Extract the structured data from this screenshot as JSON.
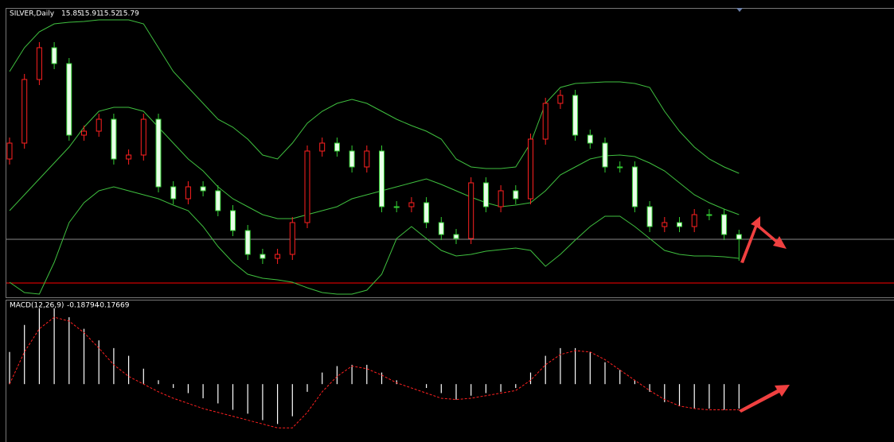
{
  "chart_data": {
    "type": "candlestick",
    "symbol": "SILVER,Daily",
    "ohlc": [
      15.85,
      15.91,
      15.52,
      15.79
    ],
    "ylim": [
      15.08,
      18.7
    ],
    "level": 15.24,
    "level_color": "#ff0000",
    "bid_color": "#8a8a8a",
    "up_color": "#ff2020",
    "down_color": "#e8ffe8",
    "wick_color": "#33cc33",
    "band_color": "#3fbf3f",
    "candles": [
      [
        16.8,
        17.07,
        16.73,
        17.0
      ],
      [
        17.0,
        17.87,
        16.93,
        17.8
      ],
      [
        17.8,
        18.27,
        17.73,
        18.2
      ],
      [
        18.2,
        18.27,
        17.93,
        18.0
      ],
      [
        18.0,
        18.07,
        17.03,
        17.1
      ],
      [
        17.1,
        17.22,
        17.03,
        17.15
      ],
      [
        17.15,
        17.37,
        17.08,
        17.3
      ],
      [
        17.3,
        17.37,
        16.73,
        16.8
      ],
      [
        16.8,
        16.92,
        16.73,
        16.85
      ],
      [
        16.85,
        17.37,
        16.78,
        17.3
      ],
      [
        17.3,
        17.37,
        16.38,
        16.45
      ],
      [
        16.45,
        16.52,
        16.23,
        16.3
      ],
      [
        16.3,
        16.52,
        16.23,
        16.45
      ],
      [
        16.45,
        16.52,
        16.33,
        16.4
      ],
      [
        16.4,
        16.47,
        16.08,
        16.15
      ],
      [
        16.15,
        16.22,
        15.83,
        15.9
      ],
      [
        15.9,
        15.97,
        15.53,
        15.6
      ],
      [
        15.6,
        15.67,
        15.48,
        15.55
      ],
      [
        15.55,
        15.67,
        15.48,
        15.6
      ],
      [
        15.6,
        16.07,
        15.53,
        16.0
      ],
      [
        16.0,
        16.97,
        15.93,
        16.9
      ],
      [
        16.9,
        17.07,
        16.83,
        17.0
      ],
      [
        17.0,
        17.07,
        16.83,
        16.9
      ],
      [
        16.9,
        16.97,
        16.63,
        16.7
      ],
      [
        16.7,
        16.97,
        16.63,
        16.9
      ],
      [
        16.9,
        16.97,
        16.13,
        16.2
      ],
      [
        16.2,
        16.27,
        16.13,
        16.2
      ],
      [
        16.2,
        16.32,
        16.13,
        16.25
      ],
      [
        16.25,
        16.32,
        15.93,
        16.0
      ],
      [
        16.0,
        16.07,
        15.78,
        15.85
      ],
      [
        15.85,
        15.92,
        15.73,
        15.8
      ],
      [
        15.8,
        16.57,
        15.73,
        16.5
      ],
      [
        16.5,
        16.57,
        16.13,
        16.2
      ],
      [
        16.2,
        16.47,
        16.13,
        16.4
      ],
      [
        16.4,
        16.47,
        16.23,
        16.3
      ],
      [
        16.3,
        17.12,
        16.23,
        17.05
      ],
      [
        17.05,
        17.57,
        16.98,
        17.5
      ],
      [
        17.5,
        17.67,
        17.43,
        17.6
      ],
      [
        17.6,
        17.67,
        17.03,
        17.1
      ],
      [
        17.1,
        17.17,
        16.93,
        17.0
      ],
      [
        17.0,
        17.07,
        16.63,
        16.7
      ],
      [
        16.7,
        16.77,
        16.63,
        16.7
      ],
      [
        16.7,
        16.77,
        16.13,
        16.2
      ],
      [
        16.2,
        16.27,
        15.88,
        15.95
      ],
      [
        15.95,
        16.07,
        15.88,
        16.0
      ],
      [
        16.0,
        16.07,
        15.88,
        15.95
      ],
      [
        15.95,
        16.17,
        15.88,
        16.1
      ],
      [
        16.1,
        16.17,
        16.03,
        16.1
      ],
      [
        16.1,
        16.17,
        15.78,
        15.85
      ],
      [
        15.85,
        15.91,
        15.52,
        15.79
      ]
    ],
    "upper_band": [
      17.9,
      18.2,
      18.4,
      18.5,
      18.52,
      18.53,
      18.55,
      18.55,
      18.55,
      18.5,
      18.2,
      17.9,
      17.7,
      17.5,
      17.3,
      17.2,
      17.05,
      16.85,
      16.8,
      17.0,
      17.25,
      17.4,
      17.5,
      17.55,
      17.5,
      17.4,
      17.3,
      17.22,
      17.15,
      17.05,
      16.8,
      16.7,
      16.68,
      16.68,
      16.7,
      17.0,
      17.5,
      17.7,
      17.75,
      17.76,
      17.77,
      17.77,
      17.75,
      17.7,
      17.4,
      17.15,
      16.95,
      16.8,
      16.7,
      16.62
    ],
    "middle_band": [
      16.15,
      16.35,
      16.55,
      16.75,
      16.95,
      17.2,
      17.4,
      17.45,
      17.45,
      17.4,
      17.2,
      17.0,
      16.8,
      16.65,
      16.45,
      16.3,
      16.2,
      16.1,
      16.05,
      16.05,
      16.1,
      16.15,
      16.2,
      16.3,
      16.35,
      16.4,
      16.45,
      16.5,
      16.55,
      16.48,
      16.4,
      16.32,
      16.25,
      16.2,
      16.22,
      16.25,
      16.4,
      16.6,
      16.7,
      16.8,
      16.84,
      16.85,
      16.83,
      16.75,
      16.65,
      16.5,
      16.35,
      16.25,
      16.17,
      16.1
    ],
    "lower_band": [
      15.25,
      15.12,
      15.1,
      15.5,
      16.0,
      16.25,
      16.4,
      16.45,
      16.4,
      16.35,
      16.3,
      16.22,
      16.15,
      15.95,
      15.7,
      15.5,
      15.35,
      15.3,
      15.28,
      15.25,
      15.18,
      15.12,
      15.1,
      15.1,
      15.15,
      15.35,
      15.8,
      15.95,
      15.8,
      15.65,
      15.58,
      15.6,
      15.64,
      15.66,
      15.68,
      15.65,
      15.45,
      15.6,
      15.78,
      15.95,
      16.08,
      16.08,
      15.95,
      15.8,
      15.65,
      15.6,
      15.58,
      15.58,
      15.57,
      15.55
    ],
    "macd": {
      "label": "MACD(12,26,9)",
      "readout": [
        -0.18794,
        -0.17669
      ],
      "ylim": [
        -0.45,
        0.65
      ],
      "hist_color": "#ffffff",
      "signal_color": "#ff2020",
      "histogram": [
        0.25,
        0.46,
        0.59,
        0.59,
        0.52,
        0.43,
        0.34,
        0.28,
        0.22,
        0.12,
        0.03,
        -0.03,
        -0.07,
        -0.11,
        -0.15,
        -0.2,
        -0.23,
        -0.28,
        -0.31,
        -0.25,
        -0.06,
        0.09,
        0.14,
        0.15,
        0.15,
        0.09,
        0.03,
        0.0,
        -0.03,
        -0.07,
        -0.12,
        -0.09,
        -0.07,
        -0.06,
        -0.03,
        0.09,
        0.22,
        0.28,
        0.28,
        0.25,
        0.17,
        0.11,
        0.03,
        -0.06,
        -0.14,
        -0.17,
        -0.19,
        -0.19,
        -0.2,
        -0.19
      ],
      "signal": [
        0,
        0.25,
        0.43,
        0.52,
        0.49,
        0.4,
        0.28,
        0.15,
        0.06,
        0,
        -0.06,
        -0.11,
        -0.15,
        -0.19,
        -0.22,
        -0.25,
        -0.28,
        -0.31,
        -0.34,
        -0.34,
        -0.22,
        -0.06,
        0.06,
        0.14,
        0.12,
        0.07,
        0.01,
        -0.03,
        -0.07,
        -0.11,
        -0.12,
        -0.11,
        -0.09,
        -0.07,
        -0.05,
        0.03,
        0.15,
        0.23,
        0.26,
        0.25,
        0.19,
        0.11,
        0.03,
        -0.05,
        -0.12,
        -0.17,
        -0.19,
        -0.2,
        -0.2,
        -0.2
      ]
    }
  }
}
